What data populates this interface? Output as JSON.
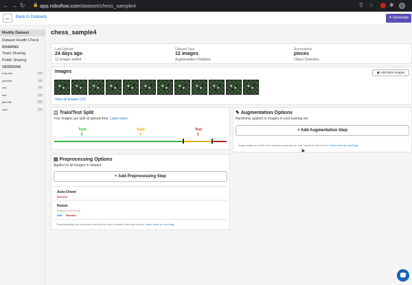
{
  "browser": {
    "url_host": "app.roboflow.com",
    "url_path": "/dataset/chess_sample4"
  },
  "topbar": {
    "back_label": "Back to Datasets",
    "generate_label": "Generate"
  },
  "sidebar": {
    "items": [
      {
        "label": "Modify Dataset"
      },
      {
        "label": "Dataset Health Check"
      }
    ],
    "sharing_heading": "SHARING",
    "sharing_items": [
      {
        "label": "Team Sharing"
      },
      {
        "label": "Public Sharing"
      }
    ],
    "versions_heading": "VERSIONS",
    "versions": [
      {
        "name": "truly-raw",
        "badge": "v6"
      },
      {
        "name": "youtube",
        "badge": "v5"
      },
      {
        "name": "raw",
        "badge": "v4"
      },
      {
        "name": "test",
        "badge": "v3"
      },
      {
        "name": "just-nite",
        "badge": "v2"
      },
      {
        "name": "omit",
        "badge": "v1"
      }
    ]
  },
  "page": {
    "title": "chess_sample4"
  },
  "stats": {
    "last_upload_label": "Last Upload",
    "last_upload_value": "24 days ago",
    "last_upload_sub": "12 images added",
    "size_label": "Dataset Size",
    "size_value": "12 images",
    "size_sub": "Augmentation Disabled",
    "annotations_label": "Annotations",
    "annotations_value": "pieces",
    "annotations_sub": "Object Detection"
  },
  "images": {
    "title": "Images",
    "add_more_label": "Add More Images",
    "view_all_label": "View all images (12)"
  },
  "split": {
    "title": "Train/Test Split",
    "desc": "Your images are split at upload time.",
    "learn_more": "Learn more.",
    "train_label": "Train",
    "train_value": "8",
    "valid_label": "Valid",
    "valid_value": "3",
    "test_label": "Test",
    "test_value": "1",
    "colors": {
      "train": "#36b336",
      "valid": "#e8b000",
      "test": "#b31d1d"
    }
  },
  "augmentation": {
    "title": "Augmentation Options",
    "desc": "Randomly applied to images in your training set",
    "add_label": "+ Add Augmentation Step",
    "footer": "Augmentations create new training examples for your model to learn from.",
    "footer_link": "Learn more on our blog."
  },
  "preprocessing": {
    "title": "Preprocessing Options",
    "desc": "Applied to all images in dataset",
    "add_label": "+ Add Preprocessing Step",
    "steps": [
      {
        "name": "Auto-Orient",
        "remove_label": "Remove"
      },
      {
        "name": "Resize",
        "detail": "Stretch to 416x416",
        "edit_label": "Edit",
        "remove_label": "Remove"
      }
    ],
    "footer": "Preprocessing can decrease training time and increase inference speed.",
    "footer_link": "Learn more on our blog."
  }
}
